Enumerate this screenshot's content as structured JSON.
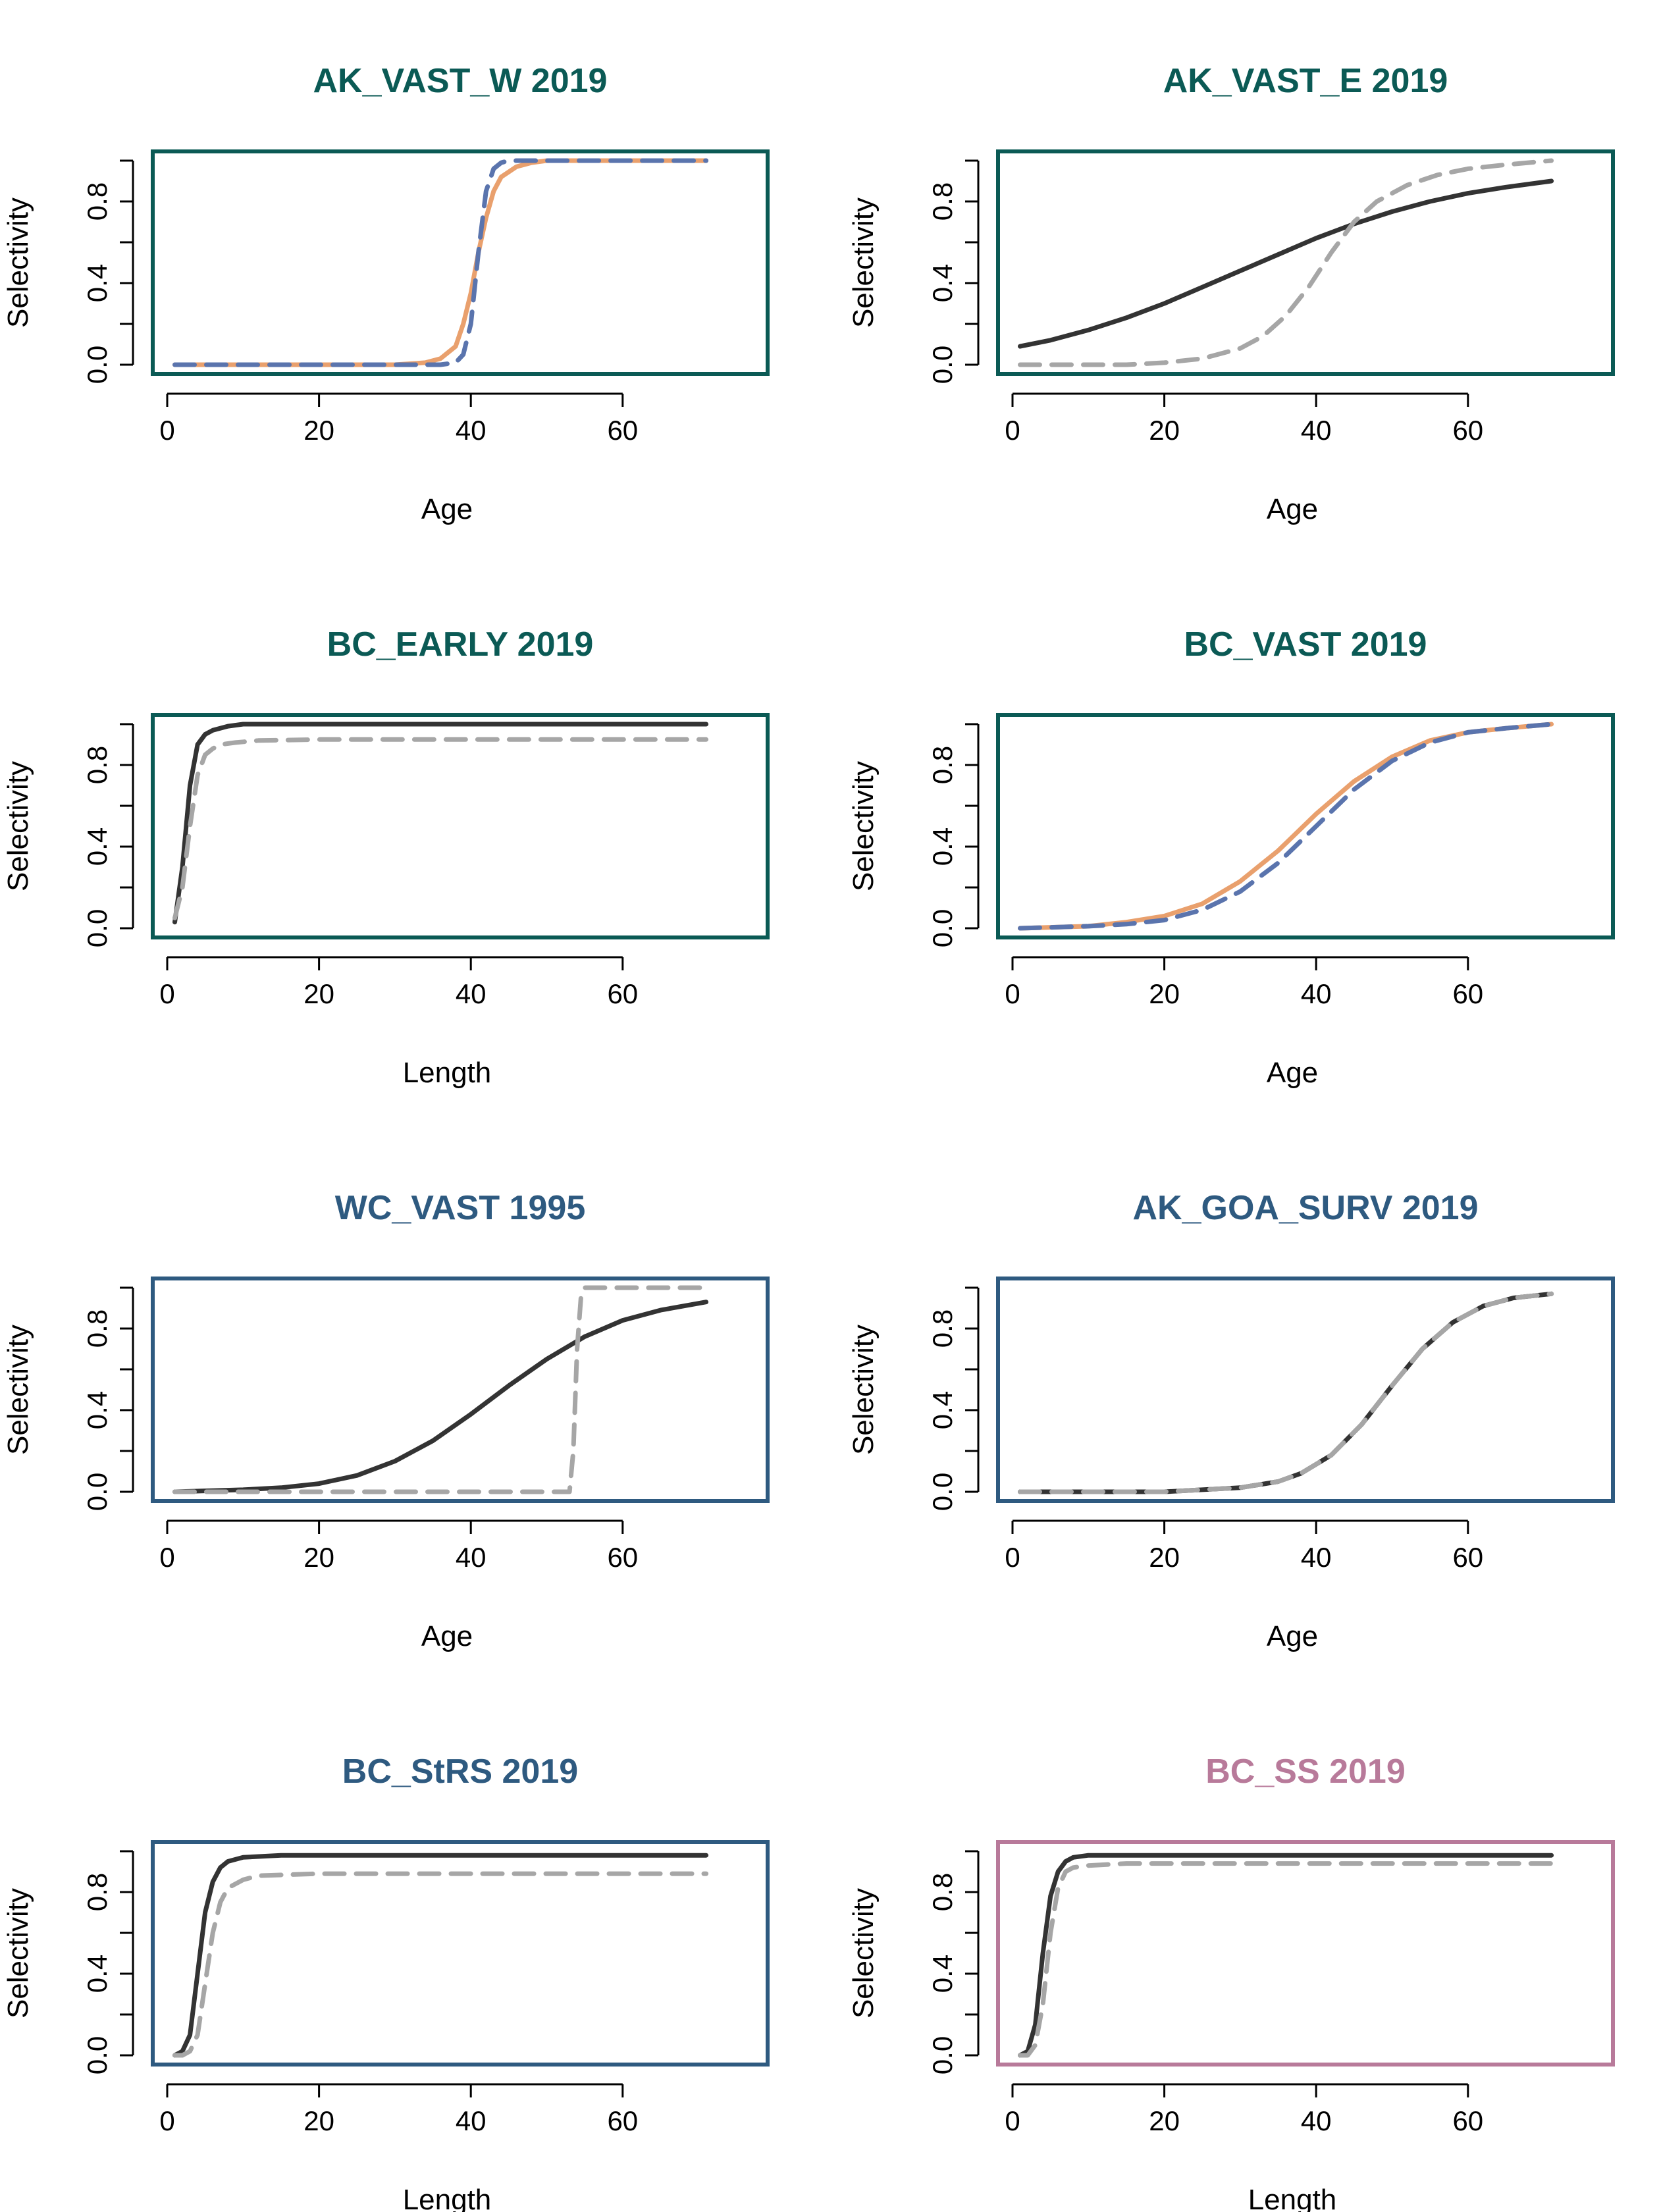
{
  "chart_data": [
    {
      "type": "line",
      "title": "AK_VAST_W 2019",
      "title_color": "#0b5a55",
      "frame_color": "#0b5a55",
      "xlabel": "Age",
      "ylabel": "Selectivity",
      "xlim": [
        0,
        75
      ],
      "ylim": [
        0,
        1
      ],
      "xticks": [
        "0",
        "20",
        "40",
        "60"
      ],
      "yticks": [
        "0.0",
        "0.4",
        "0.8"
      ],
      "series": [
        {
          "color": "#e9a06d",
          "style": "solid",
          "x": [
            1,
            30,
            34,
            36,
            38,
            39,
            40,
            41,
            42,
            43,
            44,
            46,
            48,
            50,
            55,
            71
          ],
          "y": [
            0,
            0,
            0.01,
            0.03,
            0.09,
            0.2,
            0.35,
            0.55,
            0.72,
            0.85,
            0.92,
            0.97,
            0.99,
            1.0,
            1.0,
            1.0
          ]
        },
        {
          "color": "#5a74ad",
          "style": "dashed",
          "x": [
            1,
            36,
            38,
            39,
            40,
            41,
            42,
            43,
            44,
            45,
            71
          ],
          "y": [
            0,
            0,
            0.01,
            0.05,
            0.2,
            0.55,
            0.85,
            0.96,
            0.99,
            1.0,
            1.0
          ]
        }
      ]
    },
    {
      "type": "line",
      "title": "AK_VAST_E 2019",
      "title_color": "#0b5a55",
      "frame_color": "#0b5a55",
      "xlabel": "Age",
      "ylabel": "Selectivity",
      "xlim": [
        0,
        75
      ],
      "ylim": [
        0,
        1
      ],
      "xticks": [
        "0",
        "20",
        "40",
        "60"
      ],
      "yticks": [
        "0.0",
        "0.4",
        "0.8"
      ],
      "series": [
        {
          "color": "#333333",
          "style": "solid",
          "x": [
            1,
            5,
            10,
            15,
            20,
            25,
            30,
            35,
            40,
            45,
            50,
            55,
            60,
            65,
            71
          ],
          "y": [
            0.09,
            0.12,
            0.17,
            0.23,
            0.3,
            0.38,
            0.46,
            0.54,
            0.62,
            0.69,
            0.75,
            0.8,
            0.84,
            0.87,
            0.9
          ]
        },
        {
          "color": "#a6a6a6",
          "style": "dashed",
          "x": [
            1,
            15,
            20,
            25,
            30,
            33,
            36,
            39,
            42,
            45,
            48,
            52,
            56,
            60,
            65,
            71
          ],
          "y": [
            0,
            0,
            0.01,
            0.03,
            0.08,
            0.14,
            0.24,
            0.38,
            0.55,
            0.7,
            0.8,
            0.88,
            0.93,
            0.96,
            0.98,
            1.0
          ]
        }
      ]
    },
    {
      "type": "line",
      "title": "BC_EARLY 2019",
      "title_color": "#0b5a55",
      "frame_color": "#0b5a55",
      "xlabel": "Length",
      "ylabel": "Selectivity",
      "xlim": [
        0,
        75
      ],
      "ylim": [
        0,
        1
      ],
      "xticks": [
        "0",
        "20",
        "40",
        "60"
      ],
      "yticks": [
        "0.0",
        "0.4",
        "0.8"
      ],
      "series": [
        {
          "color": "#333333",
          "style": "solid",
          "x": [
            1,
            2,
            3,
            4,
            5,
            6,
            8,
            10,
            15,
            71
          ],
          "y": [
            0.03,
            0.3,
            0.7,
            0.9,
            0.95,
            0.97,
            0.99,
            1.0,
            1.0,
            1.0
          ]
        },
        {
          "color": "#a6a6a6",
          "style": "dashed",
          "x": [
            1,
            2,
            3,
            4,
            5,
            6,
            7,
            9,
            12,
            20,
            71
          ],
          "y": [
            0.05,
            0.2,
            0.5,
            0.75,
            0.85,
            0.88,
            0.9,
            0.91,
            0.92,
            0.925,
            0.925
          ]
        }
      ]
    },
    {
      "type": "line",
      "title": "BC_VAST 2019",
      "title_color": "#0b5a55",
      "frame_color": "#0b5a55",
      "xlabel": "Age",
      "ylabel": "Selectivity",
      "xlim": [
        0,
        75
      ],
      "ylim": [
        0,
        1
      ],
      "xticks": [
        "0",
        "20",
        "40",
        "60"
      ],
      "yticks": [
        "0.0",
        "0.4",
        "0.8"
      ],
      "series": [
        {
          "color": "#e9a06d",
          "style": "solid",
          "x": [
            1,
            10,
            15,
            20,
            25,
            30,
            35,
            40,
            45,
            50,
            55,
            60,
            65,
            71
          ],
          "y": [
            0,
            0.01,
            0.03,
            0.06,
            0.12,
            0.23,
            0.38,
            0.56,
            0.72,
            0.84,
            0.92,
            0.96,
            0.98,
            1.0
          ]
        },
        {
          "color": "#5a74ad",
          "style": "dashed",
          "x": [
            1,
            10,
            15,
            20,
            25,
            30,
            35,
            40,
            45,
            50,
            55,
            60,
            65,
            71
          ],
          "y": [
            0,
            0.01,
            0.02,
            0.04,
            0.09,
            0.18,
            0.32,
            0.5,
            0.68,
            0.82,
            0.91,
            0.96,
            0.98,
            1.0
          ]
        }
      ]
    },
    {
      "type": "line",
      "title": "WC_VAST 1995",
      "title_color": "#2e5a80",
      "frame_color": "#2e5a80",
      "xlabel": "Age",
      "ylabel": "Selectivity",
      "xlim": [
        0,
        75
      ],
      "ylim": [
        0,
        1
      ],
      "xticks": [
        "0",
        "20",
        "40",
        "60"
      ],
      "yticks": [
        "0.0",
        "0.4",
        "0.8"
      ],
      "series": [
        {
          "color": "#333333",
          "style": "solid",
          "x": [
            1,
            10,
            15,
            20,
            25,
            30,
            35,
            40,
            45,
            50,
            55,
            60,
            65,
            71
          ],
          "y": [
            0,
            0.01,
            0.02,
            0.04,
            0.08,
            0.15,
            0.25,
            0.38,
            0.52,
            0.65,
            0.76,
            0.84,
            0.89,
            0.93
          ]
        },
        {
          "color": "#a6a6a6",
          "style": "dashed",
          "x": [
            1,
            53,
            53.5,
            54,
            54.5,
            55,
            71
          ],
          "y": [
            0,
            0,
            0.2,
            0.7,
            0.95,
            1.0,
            1.0
          ]
        }
      ]
    },
    {
      "type": "line",
      "title": "AK_GOA_SURV 2019",
      "title_color": "#2e5a80",
      "frame_color": "#2e5a80",
      "xlabel": "Age",
      "ylabel": "Selectivity",
      "xlim": [
        0,
        75
      ],
      "ylim": [
        0,
        1
      ],
      "xticks": [
        "0",
        "20",
        "40",
        "60"
      ],
      "yticks": [
        "0.0",
        "0.4",
        "0.8"
      ],
      "series": [
        {
          "color": "#333333",
          "style": "solid",
          "x": [
            1,
            20,
            25,
            30,
            35,
            38,
            42,
            46,
            50,
            54,
            58,
            62,
            66,
            71
          ],
          "y": [
            0,
            0,
            0.01,
            0.02,
            0.05,
            0.09,
            0.18,
            0.33,
            0.52,
            0.7,
            0.83,
            0.91,
            0.95,
            0.97
          ]
        },
        {
          "color": "#a6a6a6",
          "style": "dashed",
          "x": [
            1,
            20,
            25,
            30,
            35,
            38,
            42,
            46,
            50,
            54,
            58,
            62,
            66,
            71
          ],
          "y": [
            0,
            0,
            0.01,
            0.02,
            0.05,
            0.09,
            0.18,
            0.33,
            0.52,
            0.7,
            0.83,
            0.91,
            0.95,
            0.97
          ]
        }
      ]
    },
    {
      "type": "line",
      "title": "BC_StRS 2019",
      "title_color": "#2e5a80",
      "frame_color": "#2e5a80",
      "xlabel": "Length",
      "ylabel": "Selectivity",
      "xlim": [
        0,
        75
      ],
      "ylim": [
        0,
        1
      ],
      "xticks": [
        "0",
        "20",
        "40",
        "60"
      ],
      "yticks": [
        "0.0",
        "0.4",
        "0.8"
      ],
      "series": [
        {
          "color": "#333333",
          "style": "solid",
          "x": [
            1,
            2,
            3,
            4,
            5,
            6,
            7,
            8,
            10,
            15,
            71
          ],
          "y": [
            0,
            0.02,
            0.1,
            0.4,
            0.7,
            0.85,
            0.92,
            0.95,
            0.97,
            0.98,
            0.98
          ]
        },
        {
          "color": "#a6a6a6",
          "style": "dashed",
          "x": [
            1,
            2,
            3,
            4,
            5,
            6,
            7,
            8,
            10,
            12,
            20,
            71
          ],
          "y": [
            0,
            0,
            0.02,
            0.1,
            0.35,
            0.6,
            0.75,
            0.82,
            0.86,
            0.88,
            0.89,
            0.89
          ]
        }
      ]
    },
    {
      "type": "line",
      "title": "BC_SS 2019",
      "title_color": "#b87a9a",
      "frame_color": "#b87a9a",
      "xlabel": "Length",
      "ylabel": "Selectivity",
      "xlim": [
        0,
        75
      ],
      "ylim": [
        0,
        1
      ],
      "xticks": [
        "0",
        "20",
        "40",
        "60"
      ],
      "yticks": [
        "0.0",
        "0.4",
        "0.8"
      ],
      "series": [
        {
          "color": "#333333",
          "style": "solid",
          "x": [
            1,
            2,
            3,
            4,
            5,
            6,
            7,
            8,
            10,
            15,
            71
          ],
          "y": [
            0,
            0.02,
            0.15,
            0.5,
            0.78,
            0.9,
            0.95,
            0.97,
            0.98,
            0.98,
            0.98
          ]
        },
        {
          "color": "#a6a6a6",
          "style": "dashed",
          "x": [
            1,
            2,
            3,
            4,
            5,
            6,
            7,
            8,
            10,
            15,
            71
          ],
          "y": [
            0,
            0,
            0.05,
            0.25,
            0.6,
            0.82,
            0.9,
            0.92,
            0.93,
            0.94,
            0.94
          ]
        }
      ]
    }
  ]
}
